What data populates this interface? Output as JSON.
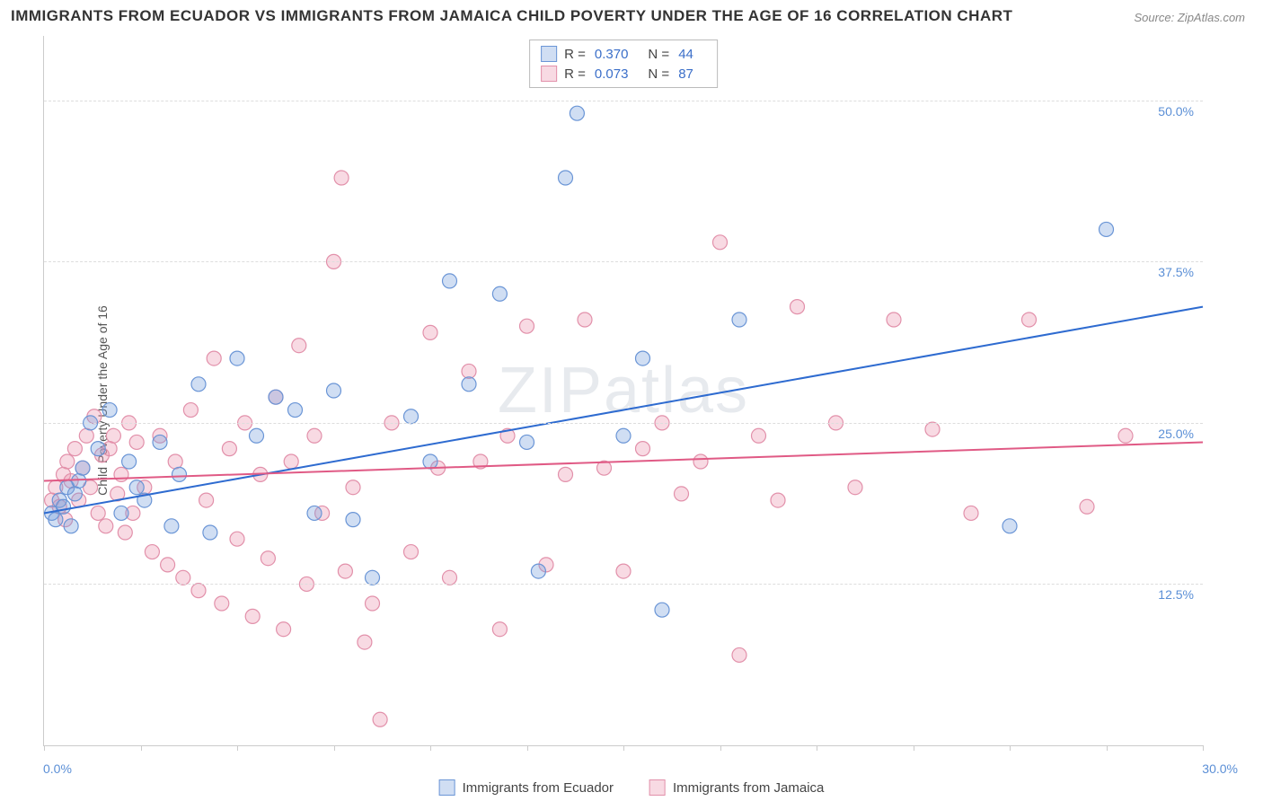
{
  "title": "IMMIGRANTS FROM ECUADOR VS IMMIGRANTS FROM JAMAICA CHILD POVERTY UNDER THE AGE OF 16 CORRELATION CHART",
  "source": "Source: ZipAtlas.com",
  "y_axis_label": "Child Poverty Under the Age of 16",
  "watermark": "ZIPatlas",
  "chart": {
    "type": "scatter+regression",
    "background_color": "#ffffff",
    "grid_color": "#dddddd",
    "axis_color": "#cccccc",
    "x_domain": [
      0,
      30
    ],
    "y_domain": [
      0,
      55
    ],
    "x_ticks": [
      0,
      2.5,
      5,
      7.5,
      10,
      12.5,
      15,
      17.5,
      20,
      22.5,
      25,
      27.5,
      30
    ],
    "x_tick_labels": {
      "0": "0.0%",
      "30": "30.0%"
    },
    "y_gridlines": [
      12.5,
      25.0,
      37.5,
      50.0
    ],
    "y_tick_labels": {
      "12.5": "12.5%",
      "25": "25.0%",
      "37.5": "37.5%",
      "50": "50.0%"
    },
    "label_color": "#5b8fd6",
    "label_fontsize": 14,
    "marker_radius": 8,
    "marker_stroke_width": 1.2,
    "line_width": 2,
    "series": [
      {
        "id": "ecuador",
        "label": "Immigrants from Ecuador",
        "fill": "rgba(120,160,220,0.35)",
        "stroke": "#6a95d6",
        "line_color": "#2e6bd0",
        "R": "0.370",
        "N": "44",
        "regression": {
          "x1": 0,
          "y1": 18.0,
          "x2": 30,
          "y2": 34.0
        },
        "points": [
          [
            0.2,
            18
          ],
          [
            0.3,
            17.5
          ],
          [
            0.4,
            19
          ],
          [
            0.5,
            18.5
          ],
          [
            0.6,
            20
          ],
          [
            0.7,
            17
          ],
          [
            0.8,
            19.5
          ],
          [
            0.9,
            20.5
          ],
          [
            1.0,
            21.5
          ],
          [
            1.2,
            25
          ],
          [
            1.4,
            23
          ],
          [
            1.7,
            26
          ],
          [
            2.0,
            18
          ],
          [
            2.2,
            22
          ],
          [
            2.4,
            20
          ],
          [
            2.6,
            19
          ],
          [
            3.0,
            23.5
          ],
          [
            3.3,
            17
          ],
          [
            3.5,
            21
          ],
          [
            4.0,
            28
          ],
          [
            4.3,
            16.5
          ],
          [
            5.0,
            30
          ],
          [
            5.5,
            24
          ],
          [
            6.0,
            27
          ],
          [
            6.5,
            26
          ],
          [
            7.0,
            18
          ],
          [
            7.5,
            27.5
          ],
          [
            8.0,
            17.5
          ],
          [
            8.5,
            13
          ],
          [
            9.5,
            25.5
          ],
          [
            10.0,
            22
          ],
          [
            10.5,
            36
          ],
          [
            11.0,
            28
          ],
          [
            11.8,
            35
          ],
          [
            12.5,
            23.5
          ],
          [
            12.8,
            13.5
          ],
          [
            13.5,
            44
          ],
          [
            13.8,
            49
          ],
          [
            15.0,
            24
          ],
          [
            15.5,
            30
          ],
          [
            16.0,
            10.5
          ],
          [
            18.0,
            33
          ],
          [
            25.0,
            17
          ],
          [
            27.5,
            40
          ]
        ]
      },
      {
        "id": "jamaica",
        "label": "Immigrants from Jamaica",
        "fill": "rgba(235,150,175,0.35)",
        "stroke": "#e290aa",
        "line_color": "#e05a85",
        "R": "0.073",
        "N": "87",
        "regression": {
          "x1": 0,
          "y1": 20.5,
          "x2": 30,
          "y2": 23.5
        },
        "points": [
          [
            0.2,
            19
          ],
          [
            0.3,
            20
          ],
          [
            0.4,
            18.5
          ],
          [
            0.5,
            21
          ],
          [
            0.55,
            17.5
          ],
          [
            0.6,
            22
          ],
          [
            0.7,
            20.5
          ],
          [
            0.8,
            23
          ],
          [
            0.9,
            19
          ],
          [
            1.0,
            21.5
          ],
          [
            1.1,
            24
          ],
          [
            1.2,
            20
          ],
          [
            1.3,
            25.5
          ],
          [
            1.4,
            18
          ],
          [
            1.5,
            22.5
          ],
          [
            1.6,
            17
          ],
          [
            1.7,
            23
          ],
          [
            1.8,
            24
          ],
          [
            1.9,
            19.5
          ],
          [
            2.0,
            21
          ],
          [
            2.1,
            16.5
          ],
          [
            2.2,
            25
          ],
          [
            2.3,
            18
          ],
          [
            2.4,
            23.5
          ],
          [
            2.6,
            20
          ],
          [
            2.8,
            15
          ],
          [
            3.0,
            24
          ],
          [
            3.2,
            14
          ],
          [
            3.4,
            22
          ],
          [
            3.6,
            13
          ],
          [
            3.8,
            26
          ],
          [
            4.0,
            12
          ],
          [
            4.2,
            19
          ],
          [
            4.4,
            30
          ],
          [
            4.6,
            11
          ],
          [
            4.8,
            23
          ],
          [
            5.0,
            16
          ],
          [
            5.2,
            25
          ],
          [
            5.4,
            10
          ],
          [
            5.6,
            21
          ],
          [
            5.8,
            14.5
          ],
          [
            6.0,
            27
          ],
          [
            6.2,
            9
          ],
          [
            6.4,
            22
          ],
          [
            6.6,
            31
          ],
          [
            6.8,
            12.5
          ],
          [
            7.0,
            24
          ],
          [
            7.2,
            18
          ],
          [
            7.5,
            37.5
          ],
          [
            7.7,
            44
          ],
          [
            7.8,
            13.5
          ],
          [
            8.0,
            20
          ],
          [
            8.3,
            8
          ],
          [
            8.5,
            11
          ],
          [
            8.7,
            2
          ],
          [
            9.0,
            25
          ],
          [
            9.5,
            15
          ],
          [
            10.0,
            32
          ],
          [
            10.2,
            21.5
          ],
          [
            10.5,
            13
          ],
          [
            11.0,
            29
          ],
          [
            11.3,
            22
          ],
          [
            11.8,
            9
          ],
          [
            12.0,
            24
          ],
          [
            12.5,
            32.5
          ],
          [
            13.0,
            14
          ],
          [
            13.5,
            21
          ],
          [
            14.0,
            33
          ],
          [
            14.5,
            21.5
          ],
          [
            15.0,
            13.5
          ],
          [
            15.5,
            23
          ],
          [
            16.0,
            25
          ],
          [
            16.5,
            19.5
          ],
          [
            17.0,
            22
          ],
          [
            17.5,
            39
          ],
          [
            18.0,
            7
          ],
          [
            18.5,
            24
          ],
          [
            19.0,
            19
          ],
          [
            19.5,
            34
          ],
          [
            20.5,
            25
          ],
          [
            21.0,
            20
          ],
          [
            22.0,
            33
          ],
          [
            23.0,
            24.5
          ],
          [
            24.0,
            18
          ],
          [
            25.5,
            33
          ],
          [
            27.0,
            18.5
          ],
          [
            28.0,
            24
          ]
        ]
      }
    ]
  },
  "legend_top": {
    "r_label": "R =",
    "n_label": "N ="
  }
}
